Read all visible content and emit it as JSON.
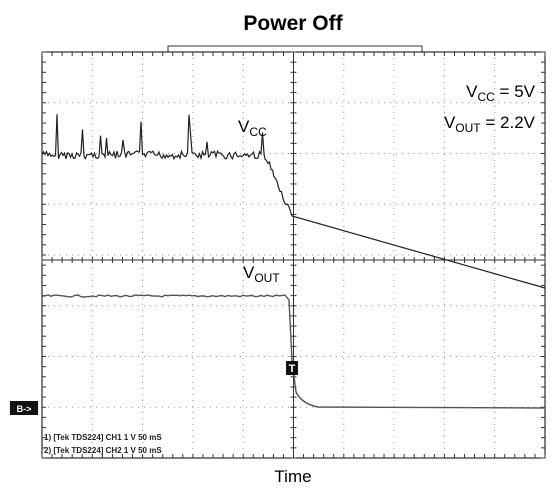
{
  "title": "Power Off",
  "x_label": "Time",
  "conditions": [
    {
      "main": "V",
      "sub": "CC",
      "rest": " = 5V"
    },
    {
      "main": "V",
      "sub": "OUT",
      "rest": " = 2.2V"
    }
  ],
  "traces": [
    {
      "main": "V",
      "sub": "CC"
    },
    {
      "main": "V",
      "sub": "OUT"
    }
  ],
  "trigger_marker": "T",
  "ground_marker": "B->",
  "status_lines": [
    "1) [Tek TDS224] CH1  1 V   50 mS",
    "2) [Tek TDS224] CH2  1 V   50 mS"
  ]
}
